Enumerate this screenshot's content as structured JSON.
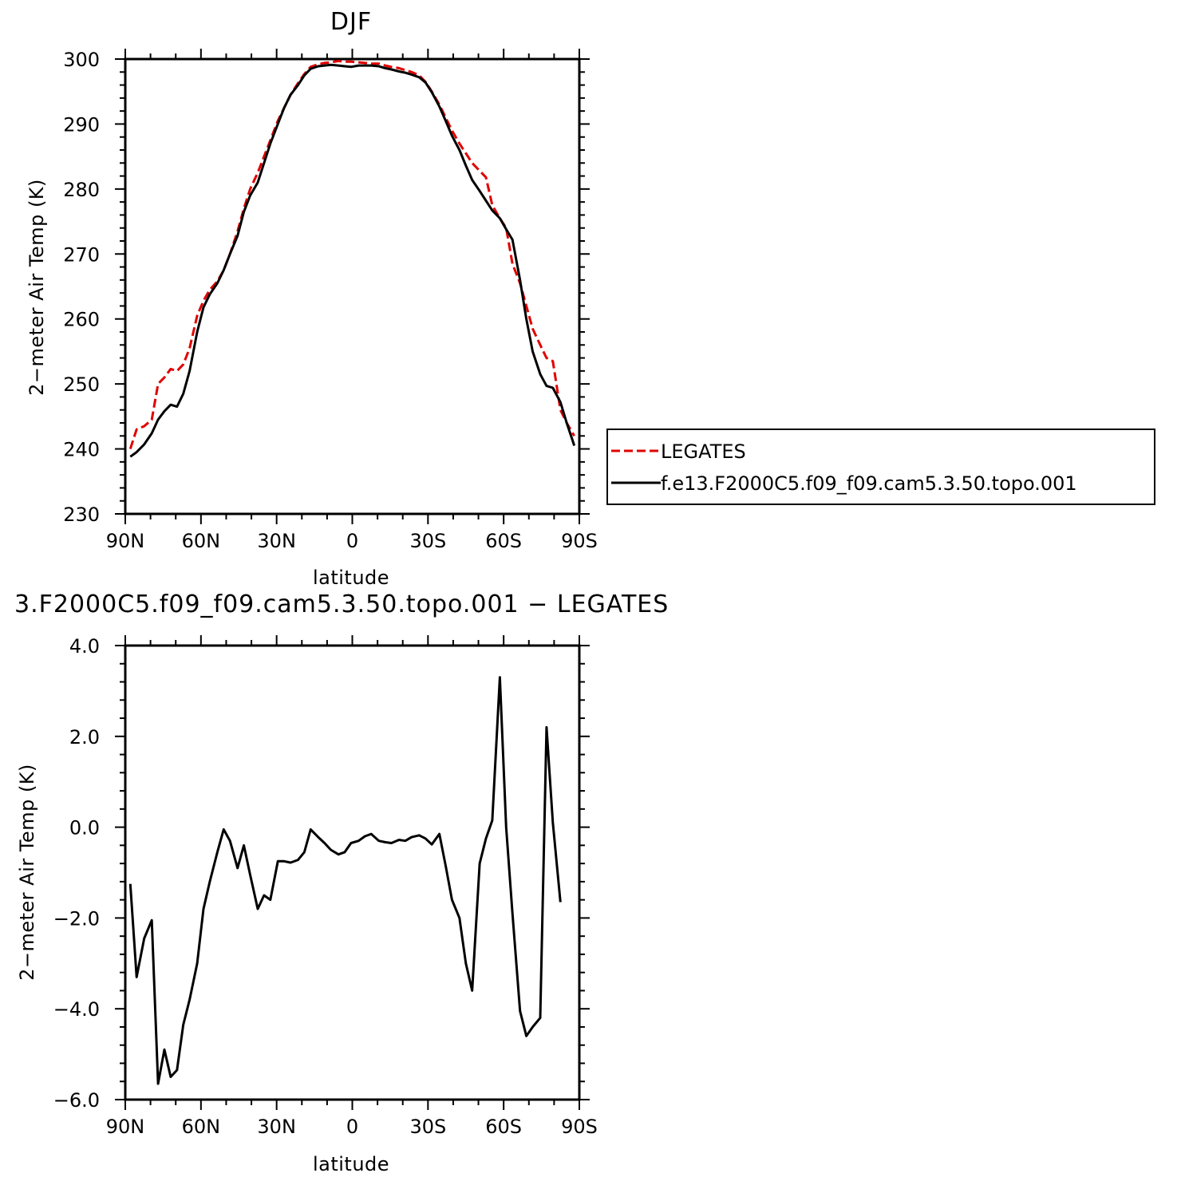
{
  "colors": {
    "obs": "#e00000",
    "model": "#000000"
  },
  "chart_data": [
    {
      "type": "line",
      "title": "DJF",
      "xlabel": "latitude",
      "ylabel": "2−meter Air Temp (K)",
      "xlim": [
        90,
        -90
      ],
      "ylim": [
        230,
        300
      ],
      "xticks": [
        {
          "value": 90,
          "label": "90N"
        },
        {
          "value": 60,
          "label": "60N"
        },
        {
          "value": 30,
          "label": "30N"
        },
        {
          "value": 0,
          "label": "0"
        },
        {
          "value": -30,
          "label": "30S"
        },
        {
          "value": -60,
          "label": "60S"
        },
        {
          "value": -90,
          "label": "90S"
        }
      ],
      "yticks": [
        {
          "value": 300,
          "label": "300"
        },
        {
          "value": 290,
          "label": "290"
        },
        {
          "value": 280,
          "label": "280"
        },
        {
          "value": 270,
          "label": "270"
        },
        {
          "value": 260,
          "label": "260"
        },
        {
          "value": 250,
          "label": "250"
        },
        {
          "value": 240,
          "label": "240"
        },
        {
          "value": 230,
          "label": "230"
        }
      ],
      "legend": {
        "position": "right",
        "entries": [
          {
            "label": "LEGATES",
            "style": "dashed",
            "color": "#e00000"
          },
          {
            "label": "f.e13.F2000C5.f09_f09.cam5.3.50.topo.001",
            "style": "solid",
            "color": "#000000"
          }
        ]
      },
      "series": [
        {
          "name": "LEGATES",
          "style": "dashed",
          "color": "#e00000",
          "points": [
            [
              88,
              240.0
            ],
            [
              85.5,
              243.0
            ],
            [
              82.5,
              243.5
            ],
            [
              79.5,
              244.5
            ],
            [
              77,
              250.0
            ],
            [
              74.5,
              251.0
            ],
            [
              72,
              252.3
            ],
            [
              69.5,
              252.0
            ],
            [
              67,
              253.0
            ],
            [
              64.5,
              255.5
            ],
            [
              61.5,
              260.5
            ],
            [
              59,
              262.8
            ],
            [
              56.5,
              264.5
            ],
            [
              53.5,
              265.8
            ],
            [
              51,
              267.5
            ],
            [
              48.5,
              270.0
            ],
            [
              45.5,
              273.5
            ],
            [
              43,
              277.0
            ],
            [
              40.5,
              280.0
            ],
            [
              37.5,
              282.5
            ],
            [
              35,
              285.0
            ],
            [
              32.5,
              287.5
            ],
            [
              29.5,
              290.5
            ],
            [
              27,
              292.5
            ],
            [
              24.5,
              294.5
            ],
            [
              21.5,
              296.3
            ],
            [
              19,
              297.7
            ],
            [
              16.5,
              298.8
            ],
            [
              13.5,
              299.2
            ],
            [
              11,
              299.4
            ],
            [
              8.5,
              299.5
            ],
            [
              5.5,
              299.7
            ],
            [
              3,
              299.6
            ],
            [
              0.5,
              299.6
            ],
            [
              -2.5,
              299.5
            ],
            [
              -5,
              299.4
            ],
            [
              -7.5,
              299.3
            ],
            [
              -10.5,
              299.3
            ],
            [
              -13,
              299.0
            ],
            [
              -15.5,
              298.8
            ],
            [
              -18.5,
              298.6
            ],
            [
              -21,
              298.3
            ],
            [
              -23.5,
              298.0
            ],
            [
              -26.5,
              297.5
            ],
            [
              -29,
              296.5
            ],
            [
              -31.5,
              295.0
            ],
            [
              -34.5,
              293.0
            ],
            [
              -37,
              291.0
            ],
            [
              -39.5,
              289.0
            ],
            [
              -42.5,
              287.0
            ],
            [
              -45,
              285.5
            ],
            [
              -47.5,
              284.0
            ],
            [
              -50.5,
              282.8
            ],
            [
              -53,
              281.8
            ],
            [
              -55.5,
              277.5
            ],
            [
              -58.5,
              275.5
            ],
            [
              -61,
              274.0
            ],
            [
              -63.5,
              268.5
            ],
            [
              -66.5,
              265.5
            ],
            [
              -69,
              262.0
            ],
            [
              -71.5,
              258.5
            ],
            [
              -74.5,
              256.0
            ],
            [
              -77,
              254.0
            ],
            [
              -79.5,
              253.5
            ],
            [
              -82.5,
              246.0
            ],
            [
              -85,
              244.0
            ],
            [
              -88,
              242.0
            ]
          ]
        },
        {
          "name": "f.e13.F2000C5.f09_f09.cam5.3.50.topo.001",
          "style": "solid",
          "color": "#000000",
          "points": [
            [
              88,
              238.8
            ],
            [
              85.5,
              239.5
            ],
            [
              82.5,
              240.7
            ],
            [
              79.5,
              242.4
            ],
            [
              77,
              244.5
            ],
            [
              74.5,
              245.8
            ],
            [
              72,
              246.8
            ],
            [
              69.5,
              246.5
            ],
            [
              67,
              248.5
            ],
            [
              64.5,
              252.0
            ],
            [
              61.5,
              258.0
            ],
            [
              59,
              261.8
            ],
            [
              56.5,
              263.8
            ],
            [
              53.5,
              265.5
            ],
            [
              51,
              267.5
            ],
            [
              48.5,
              270.0
            ],
            [
              45.5,
              272.8
            ],
            [
              43,
              276.5
            ],
            [
              40.5,
              279.0
            ],
            [
              37.5,
              281.0
            ],
            [
              35,
              284.0
            ],
            [
              32.5,
              287.0
            ],
            [
              29.5,
              290.0
            ],
            [
              27,
              292.5
            ],
            [
              24.5,
              294.5
            ],
            [
              21.5,
              296.0
            ],
            [
              19,
              297.5
            ],
            [
              16.5,
              298.5
            ],
            [
              13.5,
              298.9
            ],
            [
              11,
              299.0
            ],
            [
              8.5,
              299.1
            ],
            [
              5.5,
              299.0
            ],
            [
              3,
              298.9
            ],
            [
              0.5,
              298.8
            ],
            [
              -2.5,
              299.0
            ],
            [
              -5,
              299.0
            ],
            [
              -7.5,
              299.0
            ],
            [
              -10.5,
              298.9
            ],
            [
              -13,
              298.6
            ],
            [
              -15.5,
              298.4
            ],
            [
              -18.5,
              298.1
            ],
            [
              -21,
              297.9
            ],
            [
              -23.5,
              297.6
            ],
            [
              -26.5,
              297.2
            ],
            [
              -29,
              296.4
            ],
            [
              -31.5,
              294.9
            ],
            [
              -34.5,
              292.7
            ],
            [
              -37,
              290.5
            ],
            [
              -39.5,
              288.2
            ],
            [
              -42.5,
              286.0
            ],
            [
              -45,
              283.6
            ],
            [
              -47.5,
              281.4
            ],
            [
              -50.5,
              279.7
            ],
            [
              -53,
              278.2
            ],
            [
              -55.5,
              276.7
            ],
            [
              -58.5,
              275.5
            ],
            [
              -61,
              273.8
            ],
            [
              -63.5,
              272.2
            ],
            [
              -66.5,
              266.0
            ],
            [
              -69,
              260.0
            ],
            [
              -71.5,
              255.0
            ],
            [
              -74.5,
              251.5
            ],
            [
              -77,
              249.7
            ],
            [
              -79.5,
              249.4
            ],
            [
              -82.5,
              247.2
            ],
            [
              -85,
              244.0
            ],
            [
              -88,
              240.5
            ]
          ]
        }
      ]
    },
    {
      "type": "line",
      "title": "3.F2000C5.f09_f09.cam5.3.50.topo.001  −  LEGATES",
      "xlabel": "latitude",
      "ylabel": "2−meter Air Temp (K)",
      "xlim": [
        90,
        -90
      ],
      "ylim": [
        -6,
        4
      ],
      "xticks": [
        {
          "value": 90,
          "label": "90N"
        },
        {
          "value": 60,
          "label": "60N"
        },
        {
          "value": 30,
          "label": "30N"
        },
        {
          "value": 0,
          "label": "0"
        },
        {
          "value": -30,
          "label": "30S"
        },
        {
          "value": -60,
          "label": "60S"
        },
        {
          "value": -90,
          "label": "90S"
        }
      ],
      "yticks": [
        {
          "value": 4,
          "label": "4.0"
        },
        {
          "value": 2,
          "label": "2.0"
        },
        {
          "value": 0,
          "label": "0.0"
        },
        {
          "value": -2,
          "label": "−2.0"
        },
        {
          "value": -4,
          "label": "−4.0"
        },
        {
          "value": -6,
          "label": "−6.0"
        }
      ],
      "series": [
        {
          "style": "solid",
          "color": "#000000",
          "points": [
            [
              88,
              -1.25
            ],
            [
              85.5,
              -3.3
            ],
            [
              82.5,
              -2.45
            ],
            [
              79.5,
              -2.05
            ],
            [
              77,
              -5.65
            ],
            [
              74.5,
              -4.9
            ],
            [
              72,
              -5.5
            ],
            [
              69.5,
              -5.35
            ],
            [
              67,
              -4.35
            ],
            [
              64.5,
              -3.8
            ],
            [
              61.5,
              -3.0
            ],
            [
              59,
              -1.8
            ],
            [
              56.5,
              -1.2
            ],
            [
              53.5,
              -0.55
            ],
            [
              51,
              -0.05
            ],
            [
              48.5,
              -0.3
            ],
            [
              45.5,
              -0.9
            ],
            [
              43,
              -0.4
            ],
            [
              40.5,
              -1.05
            ],
            [
              37.5,
              -1.8
            ],
            [
              35,
              -1.5
            ],
            [
              32.5,
              -1.6
            ],
            [
              29.5,
              -0.75
            ],
            [
              27,
              -0.75
            ],
            [
              24.5,
              -0.78
            ],
            [
              21.5,
              -0.72
            ],
            [
              19,
              -0.55
            ],
            [
              16.5,
              -0.05
            ],
            [
              13.5,
              -0.22
            ],
            [
              11,
              -0.35
            ],
            [
              8.5,
              -0.5
            ],
            [
              5.5,
              -0.6
            ],
            [
              3,
              -0.55
            ],
            [
              0.5,
              -0.35
            ],
            [
              -2.5,
              -0.3
            ],
            [
              -5,
              -0.2
            ],
            [
              -7.5,
              -0.15
            ],
            [
              -10.5,
              -0.3
            ],
            [
              -13,
              -0.33
            ],
            [
              -15.5,
              -0.35
            ],
            [
              -18.5,
              -0.28
            ],
            [
              -21,
              -0.3
            ],
            [
              -23.5,
              -0.22
            ],
            [
              -26.5,
              -0.18
            ],
            [
              -29,
              -0.25
            ],
            [
              -31.5,
              -0.38
            ],
            [
              -34.5,
              -0.15
            ],
            [
              -37,
              -0.85
            ],
            [
              -39.5,
              -1.6
            ],
            [
              -42.5,
              -2.0
            ],
            [
              -45,
              -3.0
            ],
            [
              -47.5,
              -3.6
            ],
            [
              -50.5,
              -0.8
            ],
            [
              -53,
              -0.25
            ],
            [
              -55.5,
              0.15
            ],
            [
              -58.5,
              3.3
            ],
            [
              -61,
              0.0
            ],
            [
              -63.5,
              -1.9
            ],
            [
              -66.5,
              -4.05
            ],
            [
              -69,
              -4.6
            ],
            [
              -71.5,
              -4.4
            ],
            [
              -74.5,
              -4.2
            ],
            [
              -77,
              2.2
            ],
            [
              -79.5,
              0.1
            ],
            [
              -82.5,
              -1.65
            ]
          ]
        }
      ]
    }
  ]
}
